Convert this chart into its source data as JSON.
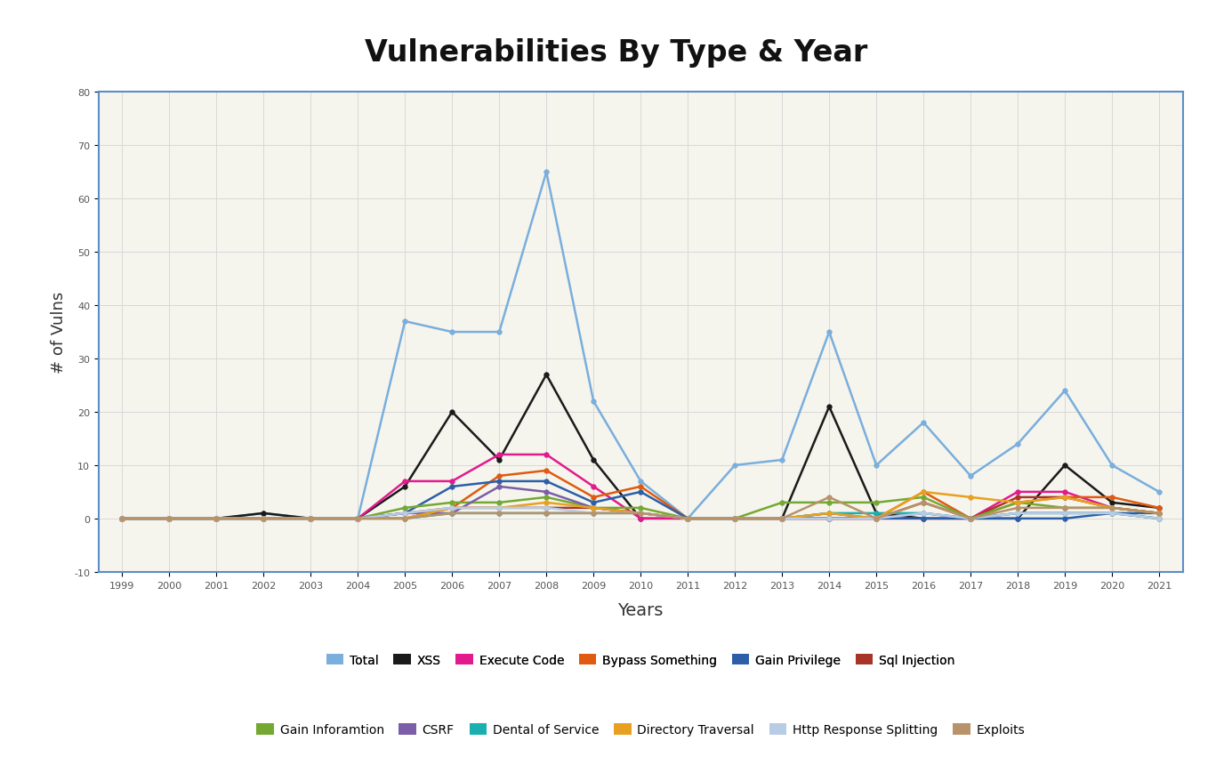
{
  "title": "Vulnerabilities By Type & Year",
  "xlabel": "Years",
  "ylabel": "# of Vulns",
  "years": [
    1999,
    2000,
    2001,
    2002,
    2003,
    2004,
    2005,
    2006,
    2007,
    2008,
    2009,
    2010,
    2011,
    2012,
    2013,
    2014,
    2015,
    2016,
    2017,
    2018,
    2019,
    2020,
    2021
  ],
  "ylim": [
    -10,
    80
  ],
  "yticks": [
    -10,
    0,
    10,
    20,
    30,
    40,
    50,
    60,
    70,
    80
  ],
  "series": {
    "Total": {
      "color": "#7aaedc",
      "values": [
        0,
        0,
        0,
        1,
        0,
        0,
        37,
        35,
        35,
        65,
        22,
        7,
        0,
        10,
        11,
        35,
        10,
        18,
        8,
        14,
        24,
        10,
        5
      ]
    },
    "XSS": {
      "color": "#1a1a1a",
      "values": [
        0,
        0,
        0,
        1,
        0,
        0,
        6,
        20,
        11,
        27,
        11,
        0,
        0,
        0,
        0,
        21,
        1,
        0,
        0,
        0,
        10,
        3,
        2
      ]
    },
    "Execute Code": {
      "color": "#e31a8d",
      "values": [
        0,
        0,
        0,
        0,
        0,
        0,
        7,
        7,
        12,
        12,
        6,
        0,
        0,
        0,
        0,
        0,
        0,
        0,
        0,
        5,
        5,
        2,
        1
      ]
    },
    "Bypass Something": {
      "color": "#e05a10",
      "values": [
        0,
        0,
        0,
        0,
        0,
        0,
        1,
        2,
        8,
        9,
        4,
        6,
        0,
        0,
        0,
        0,
        0,
        5,
        0,
        3,
        4,
        4,
        2
      ]
    },
    "Gain Privilege": {
      "color": "#2c5fa8",
      "values": [
        0,
        0,
        0,
        0,
        0,
        0,
        1,
        6,
        7,
        7,
        3,
        5,
        0,
        0,
        0,
        0,
        0,
        0,
        0,
        0,
        0,
        1,
        1
      ]
    },
    "Sql Injection": {
      "color": "#a83428",
      "values": [
        0,
        0,
        0,
        0,
        0,
        0,
        0,
        2,
        2,
        2,
        2,
        1,
        0,
        0,
        0,
        0,
        0,
        3,
        0,
        4,
        4,
        2,
        1
      ]
    },
    "Gain Inforamtion": {
      "color": "#74a832",
      "values": [
        0,
        0,
        0,
        0,
        0,
        0,
        2,
        3,
        3,
        4,
        2,
        2,
        0,
        0,
        3,
        3,
        3,
        4,
        0,
        3,
        2,
        2,
        1
      ]
    },
    "CSRF": {
      "color": "#7b5ea7",
      "values": [
        0,
        0,
        0,
        0,
        0,
        0,
        1,
        1,
        6,
        5,
        2,
        1,
        0,
        0,
        0,
        1,
        0,
        1,
        0,
        1,
        1,
        1,
        0
      ]
    },
    "Dental of Service": {
      "color": "#1ab0b0",
      "values": [
        0,
        0,
        0,
        0,
        0,
        0,
        0,
        1,
        1,
        1,
        1,
        1,
        0,
        0,
        0,
        1,
        1,
        1,
        0,
        1,
        1,
        1,
        0
      ]
    },
    "Directory Traversal": {
      "color": "#e8a020",
      "values": [
        0,
        0,
        0,
        0,
        0,
        0,
        0,
        2,
        2,
        3,
        2,
        1,
        0,
        0,
        0,
        1,
        0,
        5,
        4,
        3,
        4,
        2,
        1
      ]
    },
    "Http Response Splitting": {
      "color": "#b8cce4",
      "values": [
        0,
        0,
        0,
        0,
        0,
        0,
        1,
        2,
        2,
        2,
        1,
        1,
        0,
        0,
        0,
        0,
        0,
        1,
        0,
        1,
        1,
        1,
        0
      ]
    },
    "Exploits": {
      "color": "#b8926a",
      "values": [
        0,
        0,
        0,
        0,
        0,
        0,
        0,
        1,
        1,
        1,
        1,
        1,
        0,
        0,
        0,
        4,
        0,
        3,
        0,
        2,
        2,
        2,
        1
      ]
    }
  },
  "plot_bg_color": "#f5f5ee",
  "border_color": "#5b8dc8",
  "legend_row1": [
    "Total",
    "XSS",
    "Execute Code",
    "Bypass Something",
    "Gain Privilege",
    "Sql Injection"
  ],
  "legend_row2": [
    "Gain Inforamtion",
    "CSRF",
    "Dental of Service",
    "Directory Traversal",
    "Http Response Splitting",
    "Exploits"
  ]
}
